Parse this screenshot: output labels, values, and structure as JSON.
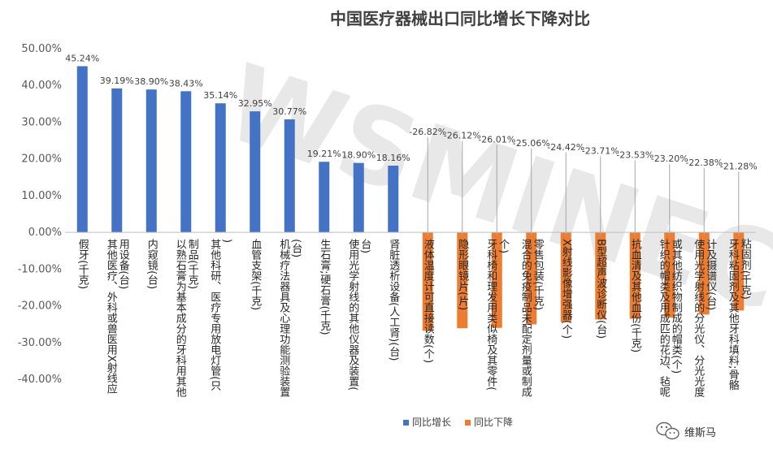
{
  "chart_data": {
    "type": "bar",
    "title": "中国医疗器械出口同比增长下降对比",
    "ylim": [
      -40,
      50
    ],
    "yticks": [
      50,
      40,
      30,
      20,
      10,
      0,
      -10,
      -20,
      -30,
      -40
    ],
    "ytick_labels": [
      "50.00%",
      "40.00%",
      "30.00%",
      "20.00%",
      "10.00%",
      "0.00%",
      "-10.00%",
      "-20.00%",
      "-30.00%",
      "-40.00%"
    ],
    "grid": false,
    "legend_position": "bottom",
    "series": [
      {
        "name": "同比增长",
        "color": "#4472c4"
      },
      {
        "name": "同比下降",
        "color": "#ed7d31"
      }
    ],
    "categories": [
      "假牙(千克)",
      "其他医疗、外科或兽医用X射线应用设备(台)",
      "内窥镜(台)",
      "以熟石膏为基本成分的牙科用其他制品(千克)",
      "其他科研、医疗专用放电灯管(只)",
      "血管支架(千克)",
      "机械疗法器具及心理功能测验装置(台)",
      "生石膏;硬石膏(千克)",
      "使用光学射线的其他仪器及装置(台)",
      "肾脏透析设备(人工肾)(台)",
      "液体温度计可直接读数(个)",
      "隐形眼镜片(片)",
      "牙科椅和理发用类似椅及其零件(个)",
      "混合的免疫制品未配定剂量或制成零售包装(千克)",
      "X射线影像增强器(个)",
      "B型超声波诊断仪(台)",
      "抗血清及其他血份(千克)",
      "针织的帽类及用成匹的花边、毡呢或其他纺织物制成的帽类(个)",
      "使用光学射线的分光仪、分光光度计及摄谱仪(台)",
      "牙科粘固剂及其他牙科填料;骨骼粘固剂(千克)"
    ],
    "values": [
      45.24,
      39.19,
      38.9,
      38.43,
      35.14,
      32.95,
      30.77,
      19.21,
      18.9,
      18.16,
      -26.82,
      -26.12,
      -26.01,
      -25.06,
      -24.42,
      -23.71,
      -23.53,
      -23.2,
      -22.38,
      -21.28
    ],
    "value_labels": [
      "45.24%",
      "39.19%",
      "38.90%",
      "38.43%",
      "35.14%",
      "32.95%",
      "30.77%",
      "19.21%",
      "18.90%",
      "18.16%",
      "-26.82%",
      "-26.12%",
      "-26.01%",
      "-25.06%",
      "-24.42%",
      "-23.71%",
      "-23.53%",
      "-23.20%",
      "-22.38%",
      "-21.28%"
    ]
  },
  "watermark": {
    "text": "WSMINEC"
  },
  "badge": {
    "text": "维斯马",
    "icon": "wechat-icon"
  }
}
